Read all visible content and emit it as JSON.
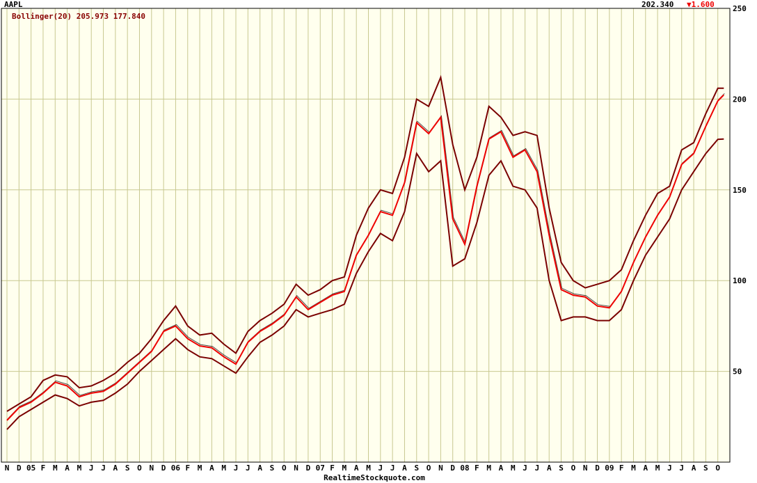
{
  "header": {
    "symbol": "AAPL",
    "indicator": "Bollinger(20) 205.973 177.840",
    "last_price": "202.340",
    "change": "▼1.600"
  },
  "footer": {
    "source": "RealtimeStockquote.com"
  },
  "colors": {
    "background": "#ffffee",
    "grid": "#c8c890",
    "price": "#ee0000",
    "bands": "#7a0000",
    "candles": "#000000",
    "text": "#000000",
    "indicator_text": "#880000",
    "change_text": "#ee0000"
  },
  "chart_data": {
    "type": "line",
    "ylim": [
      0,
      250
    ],
    "y_ticks": [
      50,
      100,
      150,
      200,
      250
    ],
    "x_tick_labels": [
      "N",
      "D",
      "05",
      "F",
      "M",
      "A",
      "M",
      "J",
      "J",
      "A",
      "S",
      "O",
      "N",
      "D",
      "06",
      "F",
      "M",
      "A",
      "M",
      "J",
      "J",
      "A",
      "S",
      "O",
      "N",
      "D",
      "07",
      "F",
      "M",
      "A",
      "M",
      "J",
      "J",
      "A",
      "S",
      "O",
      "N",
      "D",
      "08",
      "F",
      "M",
      "A",
      "M",
      "J",
      "J",
      "A",
      "S",
      "O",
      "N",
      "D",
      "09",
      "F",
      "M",
      "A",
      "M",
      "J",
      "J",
      "A",
      "S",
      "O"
    ],
    "x_index_range": [
      0,
      60
    ],
    "series": [
      {
        "role": "price",
        "points": [
          [
            0,
            23
          ],
          [
            1,
            30
          ],
          [
            2,
            33
          ],
          [
            3,
            38
          ],
          [
            4,
            44
          ],
          [
            5,
            42
          ],
          [
            6,
            36
          ],
          [
            7,
            38
          ],
          [
            8,
            39
          ],
          [
            9,
            43
          ],
          [
            10,
            49
          ],
          [
            11,
            55
          ],
          [
            12,
            61
          ],
          [
            13,
            72
          ],
          [
            14,
            75
          ],
          [
            15,
            68
          ],
          [
            16,
            64
          ],
          [
            17,
            63
          ],
          [
            18,
            58
          ],
          [
            19,
            54
          ],
          [
            20,
            66
          ],
          [
            21,
            72
          ],
          [
            22,
            76
          ],
          [
            23,
            81
          ],
          [
            24,
            91
          ],
          [
            25,
            84
          ],
          [
            26,
            88
          ],
          [
            27,
            92
          ],
          [
            28,
            94
          ],
          [
            29,
            114
          ],
          [
            30,
            125
          ],
          [
            31,
            138
          ],
          [
            32,
            136
          ],
          [
            33,
            154
          ],
          [
            34,
            187
          ],
          [
            35,
            181
          ],
          [
            36,
            190
          ],
          [
            37,
            134
          ],
          [
            38,
            120
          ],
          [
            39,
            152
          ],
          [
            40,
            178
          ],
          [
            41,
            182
          ],
          [
            42,
            168
          ],
          [
            43,
            172
          ],
          [
            44,
            160
          ],
          [
            45,
            125
          ],
          [
            46,
            95
          ],
          [
            47,
            92
          ],
          [
            48,
            91
          ],
          [
            49,
            86
          ],
          [
            50,
            85
          ],
          [
            51,
            94
          ],
          [
            52,
            110
          ],
          [
            53,
            124
          ],
          [
            54,
            136
          ],
          [
            55,
            146
          ],
          [
            56,
            164
          ],
          [
            57,
            170
          ],
          [
            58,
            185
          ],
          [
            59,
            199
          ],
          [
            59.5,
            202.34
          ]
        ]
      },
      {
        "role": "upper_band",
        "points": [
          [
            0,
            28
          ],
          [
            1,
            32
          ],
          [
            2,
            36
          ],
          [
            3,
            45
          ],
          [
            4,
            48
          ],
          [
            5,
            47
          ],
          [
            6,
            41
          ],
          [
            7,
            42
          ],
          [
            8,
            45
          ],
          [
            9,
            49
          ],
          [
            10,
            55
          ],
          [
            11,
            60
          ],
          [
            12,
            68
          ],
          [
            13,
            78
          ],
          [
            14,
            86
          ],
          [
            15,
            75
          ],
          [
            16,
            70
          ],
          [
            17,
            71
          ],
          [
            18,
            65
          ],
          [
            19,
            60
          ],
          [
            20,
            72
          ],
          [
            21,
            78
          ],
          [
            22,
            82
          ],
          [
            23,
            87
          ],
          [
            24,
            98
          ],
          [
            25,
            92
          ],
          [
            26,
            95
          ],
          [
            27,
            100
          ],
          [
            28,
            102
          ],
          [
            29,
            125
          ],
          [
            30,
            140
          ],
          [
            31,
            150
          ],
          [
            32,
            148
          ],
          [
            33,
            168
          ],
          [
            34,
            200
          ],
          [
            35,
            196
          ],
          [
            36,
            212
          ],
          [
            37,
            175
          ],
          [
            38,
            150
          ],
          [
            39,
            168
          ],
          [
            40,
            196
          ],
          [
            41,
            190
          ],
          [
            42,
            180
          ],
          [
            43,
            182
          ],
          [
            44,
            180
          ],
          [
            45,
            140
          ],
          [
            46,
            110
          ],
          [
            47,
            100
          ],
          [
            48,
            96
          ],
          [
            49,
            98
          ],
          [
            50,
            100
          ],
          [
            51,
            106
          ],
          [
            52,
            122
          ],
          [
            53,
            136
          ],
          [
            54,
            148
          ],
          [
            55,
            152
          ],
          [
            56,
            172
          ],
          [
            57,
            176
          ],
          [
            58,
            192
          ],
          [
            59,
            205.973
          ],
          [
            59.5,
            206
          ]
        ]
      },
      {
        "role": "lower_band",
        "points": [
          [
            0,
            18
          ],
          [
            1,
            25
          ],
          [
            2,
            29
          ],
          [
            3,
            33
          ],
          [
            4,
            37
          ],
          [
            5,
            35
          ],
          [
            6,
            31
          ],
          [
            7,
            33
          ],
          [
            8,
            34
          ],
          [
            9,
            38
          ],
          [
            10,
            43
          ],
          [
            11,
            50
          ],
          [
            12,
            56
          ],
          [
            13,
            62
          ],
          [
            14,
            68
          ],
          [
            15,
            62
          ],
          [
            16,
            58
          ],
          [
            17,
            57
          ],
          [
            18,
            53
          ],
          [
            19,
            49
          ],
          [
            20,
            58
          ],
          [
            21,
            66
          ],
          [
            22,
            70
          ],
          [
            23,
            75
          ],
          [
            24,
            84
          ],
          [
            25,
            80
          ],
          [
            26,
            82
          ],
          [
            27,
            84
          ],
          [
            28,
            87
          ],
          [
            29,
            104
          ],
          [
            30,
            116
          ],
          [
            31,
            126
          ],
          [
            32,
            122
          ],
          [
            33,
            138
          ],
          [
            34,
            170
          ],
          [
            35,
            160
          ],
          [
            36,
            166
          ],
          [
            37,
            108
          ],
          [
            38,
            112
          ],
          [
            39,
            132
          ],
          [
            40,
            158
          ],
          [
            41,
            166
          ],
          [
            42,
            152
          ],
          [
            43,
            150
          ],
          [
            44,
            140
          ],
          [
            45,
            100
          ],
          [
            46,
            78
          ],
          [
            47,
            80
          ],
          [
            48,
            80
          ],
          [
            49,
            78
          ],
          [
            50,
            78
          ],
          [
            51,
            84
          ],
          [
            52,
            100
          ],
          [
            53,
            114
          ],
          [
            54,
            124
          ],
          [
            55,
            134
          ],
          [
            56,
            150
          ],
          [
            57,
            160
          ],
          [
            58,
            170
          ],
          [
            59,
            177.84
          ],
          [
            59.5,
            178
          ]
        ]
      }
    ]
  }
}
